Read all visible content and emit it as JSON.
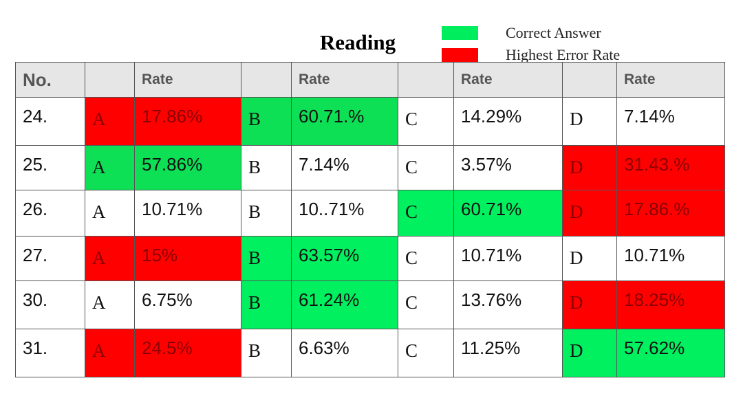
{
  "title": "Reading",
  "legend": [
    {
      "label": "Correct Answer",
      "color": "#00ee5e"
    },
    {
      "label": "Highest Error Rate",
      "color": "#ff0000"
    }
  ],
  "table": {
    "header": [
      "No.",
      "Rate",
      "Rate",
      "Rate",
      "Rate"
    ],
    "rows": [
      {
        "number": "24.",
        "options": [
          {
            "letter": "A",
            "rate": "17.86%",
            "color": "#ff0000"
          },
          {
            "letter": "B",
            "rate": "60.71.%",
            "color": "#0de055"
          },
          {
            "letter": "C",
            "rate": "14.29%",
            "color": null
          },
          {
            "letter": "D",
            "rate": "7.14%",
            "color": null
          }
        ]
      },
      {
        "number": "25.",
        "options": [
          {
            "letter": "A",
            "rate": "57.86%",
            "color": "#0de055"
          },
          {
            "letter": "B",
            "rate": "7.14%",
            "color": null
          },
          {
            "letter": "C",
            "rate": "3.57%",
            "color": null
          },
          {
            "letter": "D",
            "rate": "31.43.%",
            "color": "#ff0000"
          }
        ]
      },
      {
        "number": "26.",
        "options": [
          {
            "letter": "A",
            "rate": "10.71%",
            "color": null
          },
          {
            "letter": "B",
            "rate": "10..71%",
            "color": null
          },
          {
            "letter": "C",
            "rate": "60.71%",
            "color": "#00f060"
          },
          {
            "letter": "D",
            "rate": "17.86.%",
            "color": "#ff0000"
          }
        ]
      },
      {
        "number": "27.",
        "options": [
          {
            "letter": "A",
            "rate": "15%",
            "color": "#ff0000"
          },
          {
            "letter": "B",
            "rate": "63.57%",
            "color": "#00f060"
          },
          {
            "letter": "C",
            "rate": "10.71%",
            "color": null
          },
          {
            "letter": "D",
            "rate": "10.71%",
            "color": null
          }
        ]
      },
      {
        "number": "30.",
        "options": [
          {
            "letter": "A",
            "rate": "6.75%",
            "color": null
          },
          {
            "letter": "B",
            "rate": "61.24%",
            "color": "#00f060"
          },
          {
            "letter": "C",
            "rate": "13.76%",
            "color": null
          },
          {
            "letter": "D",
            "rate": "18.25%",
            "color": "#ff0000"
          }
        ]
      },
      {
        "number": "31.",
        "options": [
          {
            "letter": "A",
            "rate": "24.5%",
            "color": "#ff0000"
          },
          {
            "letter": "B",
            "rate": "6.63%",
            "color": null
          },
          {
            "letter": "C",
            "rate": "11.25%",
            "color": null
          },
          {
            "letter": "D",
            "rate": "57.62%",
            "color": "#00f060"
          }
        ]
      }
    ]
  }
}
